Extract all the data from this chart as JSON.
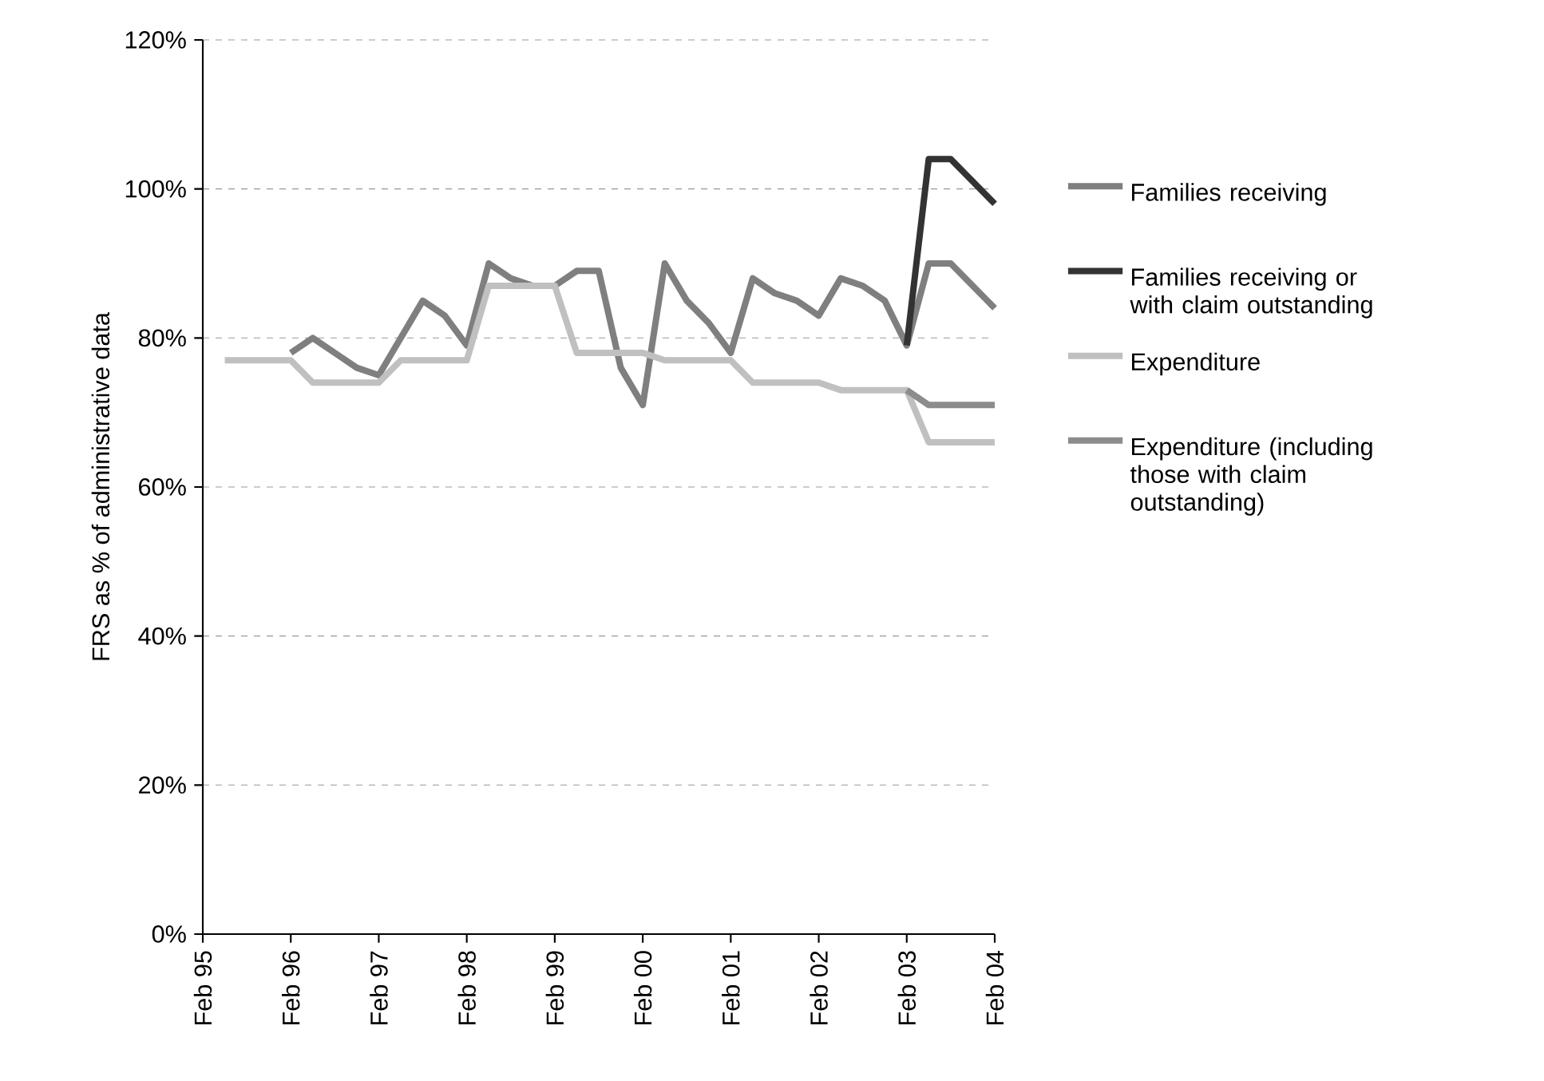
{
  "chart_data": {
    "type": "line",
    "ylabel": "FRS as % of administrative data",
    "categories": [
      "Feb 95",
      null,
      null,
      null,
      "Feb 96",
      null,
      null,
      null,
      "Feb 97",
      null,
      null,
      null,
      "Feb 98",
      null,
      null,
      null,
      "Feb 99",
      null,
      null,
      null,
      "Feb 00",
      null,
      null,
      null,
      "Feb 01",
      null,
      null,
      null,
      "Feb 02",
      null,
      null,
      null,
      "Feb 03",
      null,
      null,
      null,
      "Feb 04"
    ],
    "series": [
      {
        "name": "Families receiving",
        "color": "#7f7f7f",
        "values": [
          null,
          null,
          null,
          null,
          78,
          80,
          78,
          76,
          75,
          80,
          85,
          83,
          79,
          90,
          88,
          87,
          87,
          89,
          89,
          76,
          71,
          90,
          85,
          82,
          78,
          88,
          86,
          85,
          83,
          88,
          87,
          85,
          79,
          90,
          90,
          87,
          84
        ]
      },
      {
        "name": "Families receiving or with claim outstanding",
        "color": "#333333",
        "values": [
          null,
          null,
          null,
          null,
          null,
          null,
          null,
          null,
          null,
          null,
          null,
          null,
          null,
          null,
          null,
          null,
          null,
          null,
          null,
          null,
          null,
          null,
          null,
          null,
          null,
          null,
          null,
          null,
          null,
          null,
          null,
          null,
          79,
          104,
          104,
          101,
          98
        ]
      },
      {
        "name": "Expenditure",
        "color": "#c0c0c0",
        "values": [
          null,
          77,
          77,
          77,
          77,
          74,
          74,
          74,
          74,
          77,
          77,
          77,
          77,
          87,
          87,
          87,
          87,
          78,
          78,
          78,
          78,
          77,
          77,
          77,
          77,
          74,
          74,
          74,
          74,
          73,
          73,
          73,
          73,
          66,
          66,
          66,
          66
        ]
      },
      {
        "name": "Expenditure (including those with claim outstanding)",
        "color": "#8c8c8c",
        "values": [
          null,
          null,
          null,
          null,
          null,
          null,
          null,
          null,
          null,
          null,
          null,
          null,
          null,
          null,
          null,
          null,
          null,
          null,
          null,
          null,
          null,
          null,
          null,
          null,
          null,
          null,
          null,
          null,
          null,
          null,
          null,
          null,
          73,
          71,
          71,
          71,
          71
        ]
      }
    ],
    "ylim": [
      0,
      120
    ],
    "yticks": [
      {
        "value": 0,
        "label": "0%"
      },
      {
        "value": 20,
        "label": "20%"
      },
      {
        "value": 40,
        "label": "40%"
      },
      {
        "value": 60,
        "label": "60%"
      },
      {
        "value": 80,
        "label": "80%"
      },
      {
        "value": 100,
        "label": "100%"
      },
      {
        "value": 120,
        "label": "120%"
      }
    ],
    "grid": "y",
    "legend": "right",
    "marker": "none",
    "line_style": "solid"
  }
}
